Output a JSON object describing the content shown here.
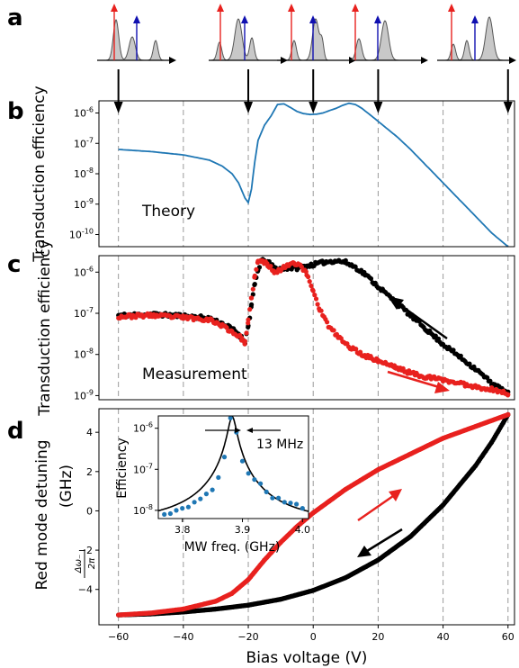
{
  "panel_labels": [
    "a",
    "b",
    "c",
    "d"
  ],
  "colors": {
    "red": "#e8211e",
    "blue": "#1f77b4",
    "dark_blue": "#1010b0",
    "black": "#000000",
    "gray_fill": "#c8c8c8"
  },
  "chart_data": [
    {
      "panel": "b",
      "type": "line",
      "ylabel": "Transduction efficiency",
      "yscale": "log",
      "xlim": [
        -66,
        62
      ],
      "ylim_exp": [
        -10.4,
        -5.6
      ],
      "yticks": [
        "10^-10",
        "10^-9",
        "10^-8",
        "10^-7",
        "10^-6"
      ],
      "annotation": "Theory",
      "series": [
        {
          "color": "#1f77b4",
          "x": [
            -60,
            -50,
            -40,
            -32,
            -28,
            -25,
            -23,
            -22,
            -21,
            -20,
            -19,
            -18,
            -17,
            -15,
            -13,
            -11,
            -9,
            -7,
            -5,
            -3,
            -1,
            1,
            3,
            5,
            7,
            9,
            11,
            13,
            15,
            18,
            22,
            26,
            30,
            35,
            40,
            45,
            50,
            55,
            60
          ],
          "log10_y": [
            -7.2,
            -7.27,
            -7.38,
            -7.55,
            -7.75,
            -8.0,
            -8.3,
            -8.55,
            -8.8,
            -8.95,
            -8.5,
            -7.6,
            -6.9,
            -6.4,
            -6.1,
            -5.72,
            -5.7,
            -5.82,
            -5.95,
            -6.02,
            -6.05,
            -6.04,
            -6.0,
            -5.92,
            -5.85,
            -5.75,
            -5.68,
            -5.72,
            -5.85,
            -6.1,
            -6.45,
            -6.8,
            -7.2,
            -7.75,
            -8.3,
            -8.85,
            -9.4,
            -9.95,
            -10.4
          ]
        }
      ]
    },
    {
      "panel": "c",
      "type": "scatter",
      "ylabel": "Transduction efficiency",
      "yscale": "log",
      "xlim": [
        -66,
        62
      ],
      "ylim_exp": [
        -9.1,
        -5.6
      ],
      "yticks": [
        "10^-9",
        "10^-8",
        "10^-7",
        "10^-6"
      ],
      "annotation": "Measurement",
      "series": [
        {
          "color": "#000000",
          "x": [
            -60,
            -50,
            -40,
            -32,
            -28,
            -25,
            -23,
            -22,
            -21,
            -20,
            -19,
            -18,
            -17,
            -16,
            -14,
            -12,
            -10,
            -8,
            -5,
            -2,
            1,
            4,
            7,
            10,
            13,
            16,
            20,
            25,
            30,
            35,
            40,
            45,
            50,
            55,
            60
          ],
          "log10_y": [
            -7.05,
            -7.02,
            -7.06,
            -7.12,
            -7.25,
            -7.38,
            -7.5,
            -7.6,
            -7.7,
            -7.3,
            -6.8,
            -6.3,
            -5.95,
            -5.72,
            -5.75,
            -5.9,
            -5.92,
            -5.9,
            -5.9,
            -5.85,
            -5.8,
            -5.75,
            -5.72,
            -5.76,
            -5.88,
            -6.05,
            -6.35,
            -6.7,
            -7.05,
            -7.4,
            -7.75,
            -8.05,
            -8.35,
            -8.7,
            -8.95
          ]
        },
        {
          "color": "#e8211e",
          "x": [
            -60,
            -50,
            -40,
            -32,
            -28,
            -25,
            -23,
            -22,
            -21,
            -20,
            -19,
            -18,
            -17,
            -16,
            -14,
            -12,
            -10,
            -8,
            -6,
            -4,
            -2,
            0,
            2,
            5,
            10,
            15,
            20,
            25,
            30,
            35,
            40,
            45,
            50,
            55,
            60
          ],
          "log10_y": [
            -7.08,
            -7.05,
            -7.1,
            -7.15,
            -7.3,
            -7.45,
            -7.55,
            -7.62,
            -7.72,
            -7.2,
            -6.6,
            -6.1,
            -5.75,
            -5.72,
            -5.82,
            -5.98,
            -5.95,
            -5.82,
            -5.77,
            -5.82,
            -6.05,
            -6.45,
            -6.9,
            -7.35,
            -7.75,
            -8.0,
            -8.15,
            -8.3,
            -8.45,
            -8.55,
            -8.62,
            -8.7,
            -8.78,
            -8.85,
            -8.95
          ]
        }
      ]
    },
    {
      "panel": "d",
      "type": "scatter",
      "ylabel": "Red mode detuning",
      "ylabel2": "(GHz)",
      "xlabel": "Bias voltage (V)",
      "xlim": [
        -66,
        62
      ],
      "ylim": [
        -5.8,
        5.2
      ],
      "xticks": [
        "−60",
        "−40",
        "−20",
        "0",
        "20",
        "40",
        "60"
      ],
      "yticks": [
        "−4",
        "−2",
        "0",
        "2",
        "4"
      ],
      "series": [
        {
          "color": "#000000",
          "x": [
            -60,
            -50,
            -40,
            -30,
            -20,
            -10,
            0,
            10,
            20,
            30,
            40,
            50,
            55,
            60
          ],
          "y": [
            -5.3,
            -5.25,
            -5.15,
            -5.0,
            -4.8,
            -4.5,
            -4.05,
            -3.4,
            -2.5,
            -1.3,
            0.3,
            2.3,
            3.5,
            4.9
          ]
        },
        {
          "color": "#e8211e",
          "x": [
            -60,
            -50,
            -40,
            -30,
            -25,
            -20,
            -15,
            -10,
            -5,
            0,
            5,
            10,
            20,
            30,
            40,
            50,
            60
          ],
          "y": [
            -5.3,
            -5.2,
            -5.0,
            -4.6,
            -4.2,
            -3.5,
            -2.5,
            -1.6,
            -0.8,
            -0.1,
            0.5,
            1.1,
            2.1,
            2.9,
            3.7,
            4.3,
            4.9
          ]
        }
      ]
    },
    {
      "panel": "d-inset",
      "type": "scatter",
      "ylabel": "Efficiency",
      "xlabel": "MW freq. (GHz)",
      "yscale": "log",
      "xlim": [
        3.76,
        4.01
      ],
      "ylim_exp": [
        -8.2,
        -5.7
      ],
      "xticks": [
        "3.8",
        "3.9",
        "4.0"
      ],
      "yticks": [
        "10^-8",
        "10^-7",
        "10^-6"
      ],
      "annotation": "13 MHz",
      "series": [
        {
          "color": "#1f77b4",
          "x": [
            3.77,
            3.78,
            3.79,
            3.8,
            3.81,
            3.82,
            3.83,
            3.84,
            3.85,
            3.86,
            3.87,
            3.88,
            3.89,
            3.9,
            3.91,
            3.92,
            3.93,
            3.94,
            3.95,
            3.96,
            3.97,
            3.98,
            3.99,
            4.0
          ],
          "log10_y": [
            -8.1,
            -8.08,
            -8.0,
            -7.95,
            -7.92,
            -7.8,
            -7.72,
            -7.6,
            -7.5,
            -7.2,
            -6.7,
            -5.75,
            -6.1,
            -6.8,
            -7.1,
            -7.25,
            -7.35,
            -7.55,
            -7.7,
            -7.7,
            -7.8,
            -7.82,
            -7.85,
            -7.95
          ]
        }
      ],
      "fit_color": "#000000"
    }
  ],
  "panel_a": {
    "spectra_count": 5,
    "arrow_x_values": [
      -60,
      -20,
      0,
      20,
      60
    ]
  }
}
